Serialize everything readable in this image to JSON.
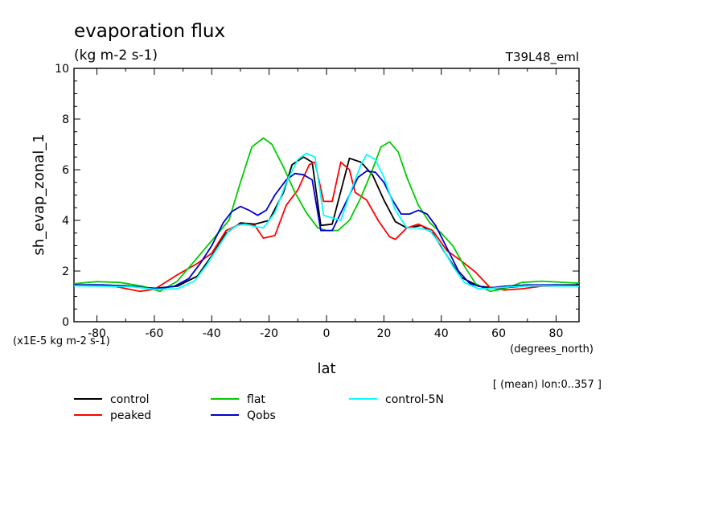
{
  "chart_data": {
    "type": "line",
    "title": "evaporation flux",
    "units": "(kg m-2 s-1)",
    "run_label": "T39L48_eml",
    "ylabel": "sh_evap_zonal_1",
    "xlabel": "lat",
    "x_units": "(degrees_north)",
    "y_scale_note": "(x1E-5 kg m-2 s-1)",
    "mean_note": "[ (mean) lon:0..357 ]",
    "xlim": [
      -88,
      88
    ],
    "ylim": [
      0,
      10
    ],
    "x_ticks": [
      -80,
      -60,
      -40,
      -20,
      0,
      20,
      40,
      60,
      80
    ],
    "x_tick_labels": [
      "-80",
      "-60",
      "-40",
      "-20",
      "0",
      "20",
      "40",
      "60",
      "80"
    ],
    "y_ticks": [
      0,
      2,
      4,
      6,
      8,
      10
    ],
    "y_tick_labels": [
      "0",
      "2",
      "4",
      "6",
      "8",
      "10"
    ],
    "grid": false,
    "legend_position": "bottom-left",
    "series": [
      {
        "name": "control",
        "color": "#000000",
        "points": [
          [
            -88,
            1.45
          ],
          [
            -80,
            1.45
          ],
          [
            -70,
            1.42
          ],
          [
            -60,
            1.32
          ],
          [
            -52,
            1.4
          ],
          [
            -45,
            1.8
          ],
          [
            -40,
            2.6
          ],
          [
            -35,
            3.5
          ],
          [
            -30,
            3.9
          ],
          [
            -25,
            3.85
          ],
          [
            -20,
            4.0
          ],
          [
            -15,
            5.1
          ],
          [
            -12,
            6.2
          ],
          [
            -8,
            6.5
          ],
          [
            -5,
            6.3
          ],
          [
            -2,
            3.8
          ],
          [
            2,
            3.85
          ],
          [
            8,
            6.45
          ],
          [
            12,
            6.3
          ],
          [
            16,
            5.8
          ],
          [
            20,
            4.8
          ],
          [
            24,
            3.95
          ],
          [
            28,
            3.7
          ],
          [
            33,
            3.8
          ],
          [
            37,
            3.5
          ],
          [
            42,
            2.6
          ],
          [
            47,
            1.75
          ],
          [
            53,
            1.4
          ],
          [
            60,
            1.32
          ],
          [
            70,
            1.42
          ],
          [
            80,
            1.45
          ],
          [
            88,
            1.45
          ]
        ]
      },
      {
        "name": "peaked",
        "color": "#ff0000",
        "points": [
          [
            -88,
            1.45
          ],
          [
            -75,
            1.42
          ],
          [
            -65,
            1.2
          ],
          [
            -60,
            1.28
          ],
          [
            -52,
            1.85
          ],
          [
            -45,
            2.3
          ],
          [
            -40,
            2.7
          ],
          [
            -35,
            3.6
          ],
          [
            -30,
            3.85
          ],
          [
            -25,
            3.8
          ],
          [
            -22,
            3.3
          ],
          [
            -18,
            3.4
          ],
          [
            -14,
            4.6
          ],
          [
            -10,
            5.2
          ],
          [
            -6,
            6.2
          ],
          [
            -4,
            6.3
          ],
          [
            -1,
            4.75
          ],
          [
            2,
            4.75
          ],
          [
            5,
            6.3
          ],
          [
            8,
            6.0
          ],
          [
            10,
            5.1
          ],
          [
            14,
            4.8
          ],
          [
            18,
            4.0
          ],
          [
            22,
            3.35
          ],
          [
            24,
            3.25
          ],
          [
            28,
            3.7
          ],
          [
            32,
            3.85
          ],
          [
            37,
            3.6
          ],
          [
            42,
            2.8
          ],
          [
            47,
            2.4
          ],
          [
            52,
            1.95
          ],
          [
            57,
            1.35
          ],
          [
            62,
            1.25
          ],
          [
            68,
            1.3
          ],
          [
            75,
            1.4
          ],
          [
            88,
            1.42
          ]
        ]
      },
      {
        "name": "flat",
        "color": "#00cc00",
        "points": [
          [
            -88,
            1.5
          ],
          [
            -80,
            1.58
          ],
          [
            -72,
            1.55
          ],
          [
            -64,
            1.4
          ],
          [
            -58,
            1.2
          ],
          [
            -52,
            1.6
          ],
          [
            -46,
            2.4
          ],
          [
            -40,
            3.2
          ],
          [
            -34,
            4.0
          ],
          [
            -30,
            5.5
          ],
          [
            -26,
            6.9
          ],
          [
            -22,
            7.25
          ],
          [
            -19,
            7.0
          ],
          [
            -15,
            6.1
          ],
          [
            -11,
            5.1
          ],
          [
            -7,
            4.3
          ],
          [
            -3,
            3.7
          ],
          [
            0,
            3.6
          ],
          [
            4,
            3.6
          ],
          [
            8,
            4.0
          ],
          [
            12,
            4.9
          ],
          [
            16,
            6.0
          ],
          [
            19,
            6.9
          ],
          [
            22,
            7.1
          ],
          [
            25,
            6.7
          ],
          [
            28,
            5.7
          ],
          [
            32,
            4.6
          ],
          [
            36,
            3.9
          ],
          [
            40,
            3.5
          ],
          [
            44,
            3.0
          ],
          [
            48,
            2.2
          ],
          [
            52,
            1.5
          ],
          [
            57,
            1.2
          ],
          [
            62,
            1.3
          ],
          [
            68,
            1.55
          ],
          [
            75,
            1.6
          ],
          [
            88,
            1.52
          ]
        ]
      },
      {
        "name": "Qobs",
        "color": "#0000cc",
        "points": [
          [
            -88,
            1.45
          ],
          [
            -78,
            1.45
          ],
          [
            -68,
            1.4
          ],
          [
            -60,
            1.3
          ],
          [
            -53,
            1.4
          ],
          [
            -48,
            1.7
          ],
          [
            -44,
            2.3
          ],
          [
            -40,
            3.0
          ],
          [
            -36,
            3.9
          ],
          [
            -33,
            4.35
          ],
          [
            -30,
            4.55
          ],
          [
            -27,
            4.4
          ],
          [
            -24,
            4.2
          ],
          [
            -21,
            4.4
          ],
          [
            -18,
            5.0
          ],
          [
            -14,
            5.6
          ],
          [
            -11,
            5.85
          ],
          [
            -8,
            5.8
          ],
          [
            -5,
            5.6
          ],
          [
            -2,
            3.6
          ],
          [
            2,
            3.6
          ],
          [
            5,
            4.3
          ],
          [
            8,
            5.0
          ],
          [
            11,
            5.7
          ],
          [
            14,
            5.95
          ],
          [
            17,
            5.9
          ],
          [
            20,
            5.5
          ],
          [
            23,
            4.8
          ],
          [
            26,
            4.25
          ],
          [
            29,
            4.25
          ],
          [
            32,
            4.4
          ],
          [
            35,
            4.25
          ],
          [
            38,
            3.8
          ],
          [
            42,
            2.9
          ],
          [
            46,
            2.0
          ],
          [
            50,
            1.5
          ],
          [
            56,
            1.32
          ],
          [
            62,
            1.4
          ],
          [
            70,
            1.45
          ],
          [
            80,
            1.45
          ],
          [
            88,
            1.42
          ]
        ]
      },
      {
        "name": "control-5N",
        "color": "#00ffff",
        "points": [
          [
            -88,
            1.42
          ],
          [
            -78,
            1.4
          ],
          [
            -68,
            1.38
          ],
          [
            -60,
            1.28
          ],
          [
            -52,
            1.3
          ],
          [
            -46,
            1.6
          ],
          [
            -42,
            2.2
          ],
          [
            -38,
            2.9
          ],
          [
            -34,
            3.6
          ],
          [
            -31,
            3.8
          ],
          [
            -28,
            3.85
          ],
          [
            -25,
            3.75
          ],
          [
            -22,
            3.7
          ],
          [
            -18,
            4.3
          ],
          [
            -14,
            5.5
          ],
          [
            -10,
            6.4
          ],
          [
            -7,
            6.65
          ],
          [
            -4,
            6.5
          ],
          [
            -1,
            4.2
          ],
          [
            2,
            4.1
          ],
          [
            5,
            4.0
          ],
          [
            8,
            5.0
          ],
          [
            12,
            6.2
          ],
          [
            14,
            6.6
          ],
          [
            17,
            6.4
          ],
          [
            20,
            5.7
          ],
          [
            24,
            4.4
          ],
          [
            28,
            3.7
          ],
          [
            32,
            3.7
          ],
          [
            36,
            3.6
          ],
          [
            40,
            3.0
          ],
          [
            44,
            2.2
          ],
          [
            48,
            1.55
          ],
          [
            53,
            1.3
          ],
          [
            58,
            1.32
          ],
          [
            64,
            1.38
          ],
          [
            72,
            1.42
          ],
          [
            88,
            1.4
          ]
        ]
      }
    ]
  }
}
